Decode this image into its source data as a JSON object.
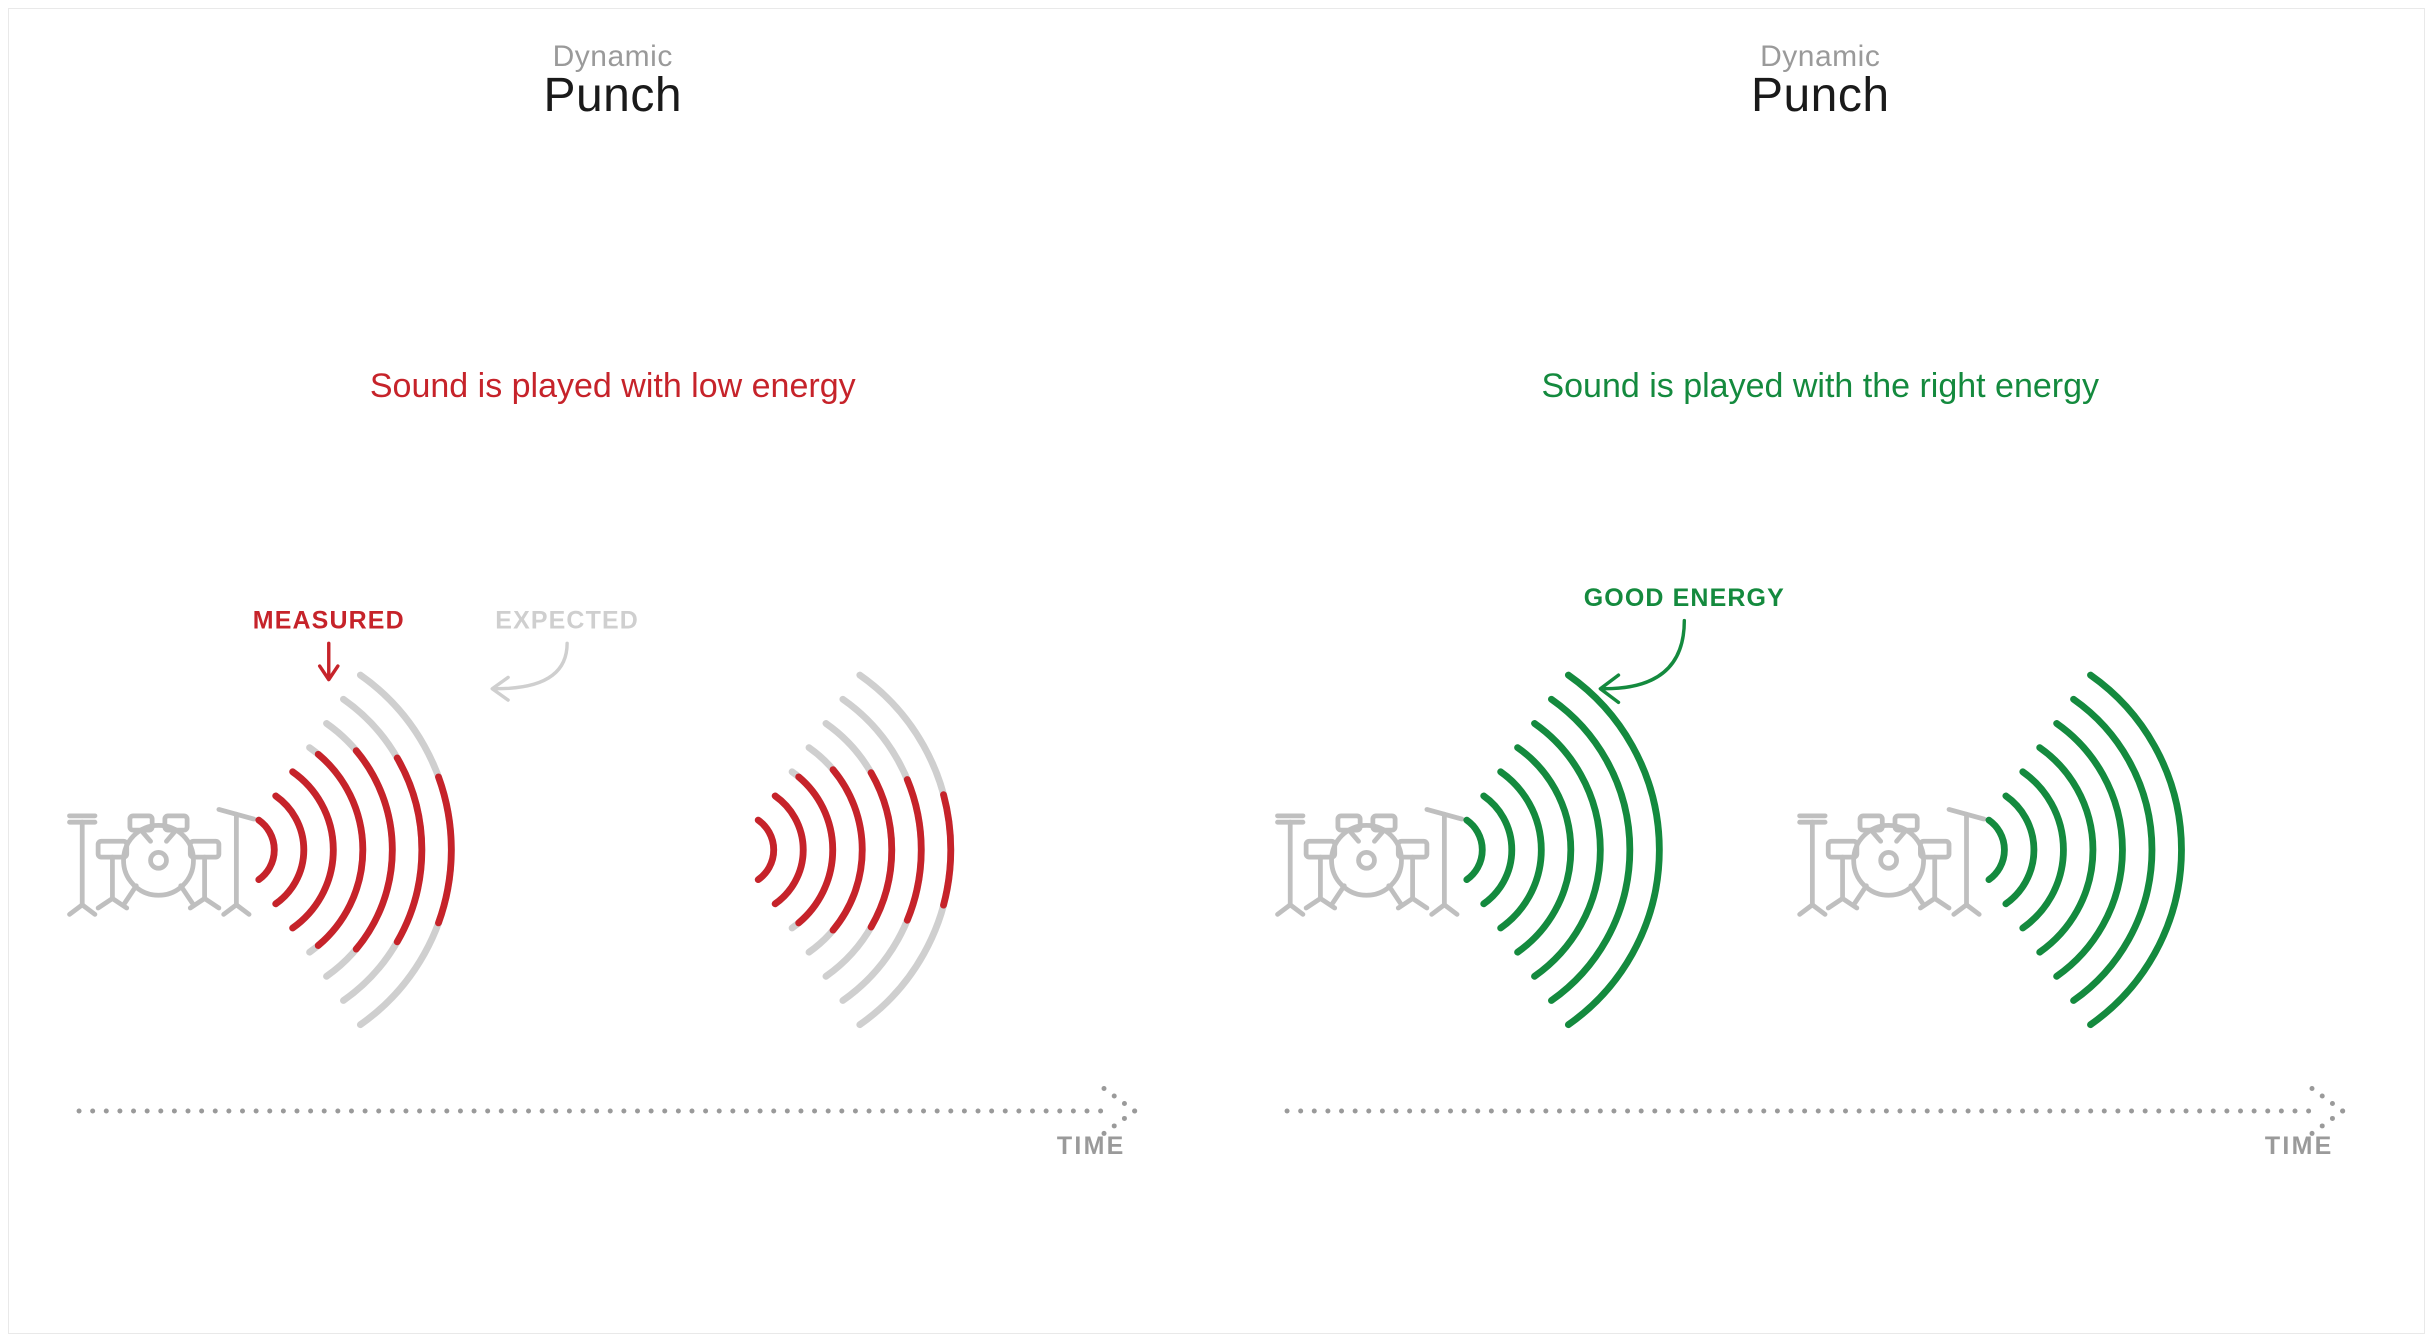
{
  "colors": {
    "red": "#c6232a",
    "green": "#148a3e",
    "gray_light": "#cfcfcf",
    "gray_mid": "#9a9a9a",
    "gray_icon": "#bfbfbf",
    "black": "#1a1a1a",
    "border": "#e9e9e9",
    "bg": "#ffffff"
  },
  "left": {
    "title_small": "Dynamic",
    "title_big": "Punch",
    "subtitle": "Sound is played with low energy",
    "subtitle_color": "#c6232a",
    "annot_measured": "MEASURED",
    "annot_expected": "EXPECTED",
    "time_label": "TIME",
    "waves": {
      "arc_count": 7,
      "stroke_width": 6,
      "group1": {
        "expected_color": "#cfcfcf",
        "measured_color": "#c6232a",
        "expected_extent_deg": 110,
        "measured_extents_deg": [
          110,
          110,
          110,
          100,
          80,
          60,
          40
        ]
      },
      "group2": {
        "expected_color": "#cfcfcf",
        "measured_color": "#c6232a",
        "expected_extent_deg": 110,
        "measured_extents_deg": [
          110,
          110,
          100,
          80,
          60,
          45,
          30
        ]
      }
    }
  },
  "right": {
    "title_small": "Dynamic",
    "title_big": "Punch",
    "subtitle": "Sound is played with the right  energy",
    "subtitle_color": "#148a3e",
    "annot_good": "GOOD ENERGY",
    "time_label": "TIME",
    "waves": {
      "arc_count": 7,
      "stroke_width": 6,
      "color": "#148a3e",
      "extent_deg": 110
    }
  },
  "timeline": {
    "dot_color": "#9a9a9a",
    "dot_radius": 2.2,
    "dot_gap": 12
  },
  "drum": {
    "stroke": "#bfbfbf",
    "stroke_width": 3
  }
}
